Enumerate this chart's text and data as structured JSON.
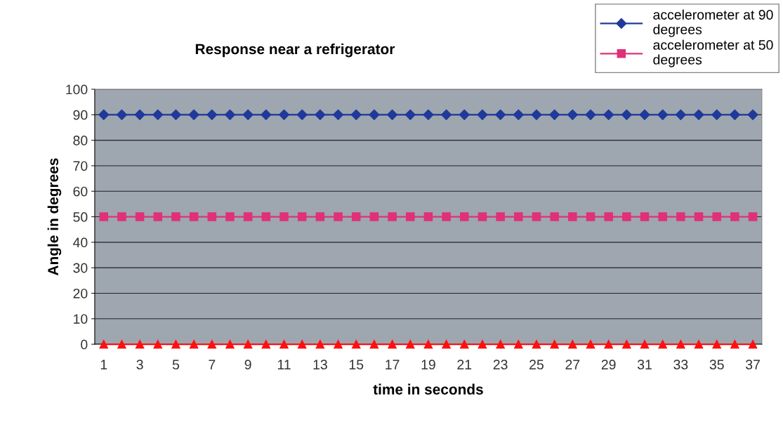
{
  "chart_data": {
    "type": "line",
    "title": "Response near a refrigerator",
    "xlabel": "time in seconds",
    "ylabel": "Angle in degrees",
    "categories": [
      "1",
      null,
      "3",
      null,
      "5",
      null,
      "7",
      null,
      "9",
      null,
      "11",
      null,
      "13",
      null,
      "15",
      null,
      "17",
      null,
      "19",
      null,
      "21",
      null,
      "23",
      null,
      "25",
      null,
      "27",
      null,
      "29",
      null,
      "31",
      null,
      "33",
      null,
      "35",
      null,
      "37"
    ],
    "series": [
      {
        "name": "accelerometer at 90\ndegrees",
        "color": "#1f3a9a",
        "marker": "diamond",
        "values": [
          90,
          90,
          90,
          90,
          90,
          90,
          90,
          90,
          90,
          90,
          90,
          90,
          90,
          90,
          90,
          90,
          90,
          90,
          90,
          90,
          90,
          90,
          90,
          90,
          90,
          90,
          90,
          90,
          90,
          90,
          90,
          90,
          90,
          90,
          90,
          90,
          90
        ]
      },
      {
        "name": "accelerometer at 50\ndegrees",
        "color": "#e0307a",
        "marker": "square",
        "values": [
          50,
          50,
          50,
          50,
          50,
          50,
          50,
          50,
          50,
          50,
          50,
          50,
          50,
          50,
          50,
          50,
          50,
          50,
          50,
          50,
          50,
          50,
          50,
          50,
          50,
          50,
          50,
          50,
          50,
          50,
          50,
          50,
          50,
          50,
          50,
          50,
          50
        ]
      },
      {
        "color": "#ff1010",
        "marker": "triangle",
        "values": [
          0,
          0,
          0,
          0,
          0,
          0,
          0,
          0,
          0,
          0,
          0,
          0,
          0,
          0,
          0,
          0,
          0,
          0,
          0,
          0,
          0,
          0,
          0,
          0,
          0,
          0,
          0,
          0,
          0,
          0,
          0,
          0,
          0,
          0,
          0,
          0,
          0
        ]
      }
    ],
    "ylim": [
      0,
      100
    ],
    "yticks": [
      0,
      10,
      20,
      30,
      40,
      50,
      60,
      70,
      80,
      90,
      100
    ],
    "grid": "y",
    "legend": "top right",
    "line_style": "solid"
  }
}
